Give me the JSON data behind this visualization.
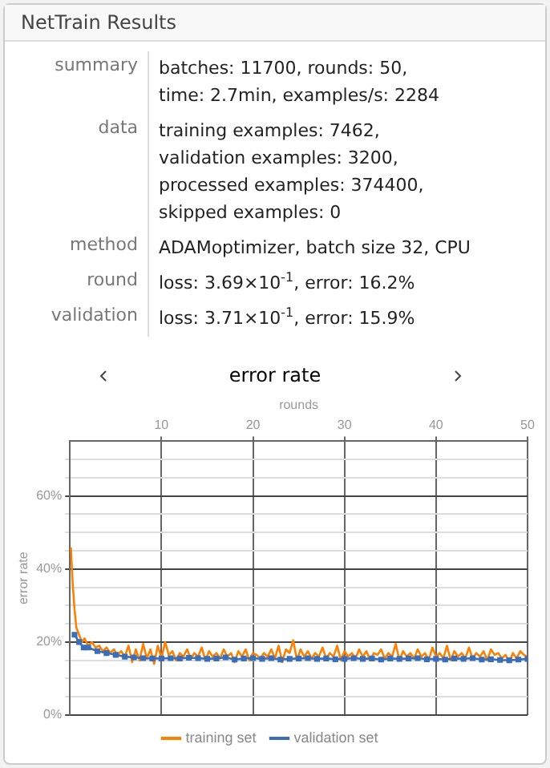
{
  "chart_data": {
    "type": "line",
    "title": "error rate",
    "xlabel": "rounds",
    "ylabel": "error rate",
    "annotations": [
      "NetTrain Results",
      "summary",
      "batches: 11700, rounds: 50,\ntime: 2.7min, examples/s: 2284",
      "data",
      "training examples: 7462,\nvalidation examples: 3200,\nprocessed examples: 374400,\nskipped examples: 0",
      "method",
      "ADAMoptimizer, batch size 32, CPU",
      "round",
      "loss: 3.69×10$^{-1}$, error: 16.2%",
      "validation",
      "loss: 3.71×10$^{-1}$, error: 15.9%"
    ],
    "xlim": [
      0,
      50
    ],
    "xticks": [
      10,
      20,
      30,
      40,
      50
    ],
    "ylim": [
      0,
      75
    ],
    "yticks": [
      {
        "value": 0,
        "label": "0%"
      },
      {
        "value": 5,
        "label": null
      },
      {
        "value": 10,
        "label": null
      },
      {
        "value": 15,
        "label": null
      },
      {
        "value": 20,
        "label": "20%"
      },
      {
        "value": 25,
        "label": null
      },
      {
        "value": 30,
        "label": null
      },
      {
        "value": 35,
        "label": null
      },
      {
        "value": 40,
        "label": "40%"
      },
      {
        "value": 45,
        "label": null
      },
      {
        "value": 50,
        "label": null
      },
      {
        "value": 55,
        "label": null
      },
      {
        "value": 60,
        "label": "60%"
      },
      {
        "value": 65,
        "label": null
      },
      {
        "value": 70,
        "label": null
      }
    ],
    "grid": true,
    "legend": "bottom",
    "series": [
      {
        "name": "training set",
        "color": "#ff8000",
        "marker": "none",
        "x": [
          0.1,
          0.3,
          0.5,
          0.7,
          1,
          1.3,
          1.6,
          2,
          2.4,
          2.8,
          3.2,
          3.6,
          4,
          4.4,
          4.8,
          5.2,
          5.6,
          6,
          6.4,
          6.8,
          7.2,
          7.6,
          8,
          8.4,
          8.8,
          9.2,
          9.6,
          10,
          10.4,
          10.8,
          11.2,
          11.6,
          12,
          12.4,
          12.8,
          13.2,
          13.6,
          14,
          14.4,
          14.8,
          15.2,
          15.6,
          16,
          16.4,
          16.8,
          17.2,
          17.6,
          18,
          18.4,
          18.8,
          19.2,
          19.6,
          20,
          20.4,
          20.8,
          21.2,
          21.6,
          22,
          22.4,
          22.8,
          23.2,
          23.6,
          24,
          24.4,
          24.8,
          25.2,
          25.6,
          26,
          26.4,
          26.8,
          27.2,
          27.6,
          28,
          28.4,
          28.8,
          29.2,
          29.6,
          30,
          30.4,
          30.8,
          31.2,
          31.6,
          32,
          32.4,
          32.8,
          33.2,
          33.6,
          34,
          34.4,
          34.8,
          35.2,
          35.6,
          36,
          36.4,
          36.8,
          37.2,
          37.6,
          38,
          38.4,
          38.8,
          39.2,
          39.6,
          40,
          40.4,
          40.8,
          41.2,
          41.6,
          42,
          42.4,
          42.8,
          43.2,
          43.6,
          44,
          44.4,
          44.8,
          45.2,
          45.6,
          46,
          46.4,
          46.8,
          47.2,
          47.6,
          48,
          48.4,
          48.8,
          49.2,
          49.6,
          50
        ],
        "values": [
          46,
          36,
          29,
          24,
          22,
          20,
          21,
          19,
          20,
          18.5,
          19,
          17.5,
          18.5,
          17,
          18,
          16.5,
          17.5,
          16,
          19,
          14.5,
          18,
          15,
          19.5,
          15.5,
          18,
          14,
          19,
          15.5,
          20,
          16.5,
          17.5,
          15,
          17,
          16,
          18,
          15.5,
          17,
          16,
          18.5,
          15,
          17.5,
          16,
          17,
          15.5,
          18,
          16,
          17,
          14.5,
          17.5,
          16,
          18,
          15,
          17,
          16.5,
          15.5,
          17,
          16,
          18,
          15.5,
          19,
          14.5,
          18,
          17,
          20.5,
          15,
          18,
          16,
          17.5,
          15.5,
          17,
          16,
          18.5,
          15.5,
          17,
          16,
          19,
          15,
          17.5,
          16,
          17,
          15.5,
          18,
          16,
          17.5,
          15,
          17,
          16.5,
          18,
          15.5,
          17,
          16,
          19.5,
          15,
          17.5,
          16,
          17,
          15.5,
          18,
          16,
          17,
          15,
          18.5,
          16,
          17,
          15.5,
          19,
          15,
          17.5,
          16,
          17,
          15.5,
          18.5,
          15.5,
          17,
          16,
          17.5,
          15,
          18,
          16.5,
          17,
          15.5,
          16.5,
          14.5,
          17,
          15.5,
          17.5,
          16.5,
          16
        ]
      },
      {
        "name": "validation set",
        "color": "#3a6fb8",
        "marker": "square",
        "x": [
          0.5,
          1,
          1.5,
          2,
          3,
          4,
          5,
          6,
          7,
          8,
          9,
          10,
          11,
          12,
          13,
          14,
          15,
          16,
          17,
          18,
          19,
          20,
          21,
          22,
          23,
          24,
          25,
          26,
          27,
          28,
          29,
          30,
          31,
          32,
          33,
          34,
          35,
          36,
          37,
          38,
          39,
          40,
          41,
          42,
          43,
          44,
          45,
          46,
          47,
          48,
          49,
          50
        ],
        "values": [
          22,
          20,
          18.5,
          18.5,
          17.5,
          17,
          16.5,
          16,
          15.8,
          15.6,
          15.5,
          15.5,
          15.6,
          15.5,
          15.7,
          15.6,
          15.4,
          15.5,
          15.8,
          15.2,
          15.5,
          15.6,
          15.4,
          15.6,
          15.2,
          15.4,
          15.5,
          15.6,
          15.4,
          15.5,
          15.3,
          15.4,
          15.6,
          15.4,
          15.5,
          15.2,
          15.5,
          15.4,
          15.5,
          15.6,
          15.3,
          15.4,
          15.2,
          15.5,
          15.4,
          15.6,
          15.2,
          15.3,
          15.1,
          15,
          15.2,
          15.4
        ]
      }
    ]
  }
}
